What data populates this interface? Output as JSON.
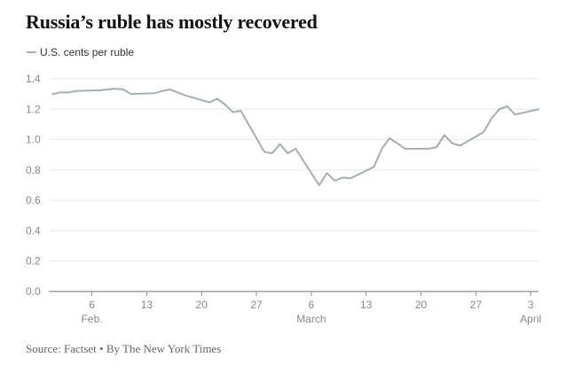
{
  "title": "Russia’s ruble has mostly recovered",
  "source": "Source: Factset • By The New York Times",
  "colors": {
    "line": "#a5aeae",
    "grid": "#e6e6e6",
    "axis": "#8c8c8c",
    "tick_text": "#888888",
    "text": "#121212"
  },
  "chart_data": {
    "type": "line",
    "title": "Russia’s ruble has mostly recovered",
    "ylabel": "",
    "xlabel": "",
    "ylim": [
      0,
      1.4
    ],
    "yticks": [
      0,
      0.2,
      0.4,
      0.6,
      0.8,
      1.0,
      1.2,
      1.4
    ],
    "ytick_labels": [
      "0.0",
      "0.2",
      "0.4",
      "0.6",
      "0.8",
      "1.0",
      "1.2",
      "1.4"
    ],
    "grid": true,
    "legend_position": "top-left",
    "xlim": [
      "2022-02-01",
      "2022-04-04"
    ],
    "xticks": [
      {
        "date": "2022-02-06",
        "label": "6",
        "sublabel": "Feb."
      },
      {
        "date": "2022-02-13",
        "label": "13",
        "sublabel": ""
      },
      {
        "date": "2022-02-20",
        "label": "20",
        "sublabel": ""
      },
      {
        "date": "2022-02-27",
        "label": "27",
        "sublabel": ""
      },
      {
        "date": "2022-03-06",
        "label": "6",
        "sublabel": "March"
      },
      {
        "date": "2022-03-13",
        "label": "13",
        "sublabel": ""
      },
      {
        "date": "2022-03-20",
        "label": "20",
        "sublabel": ""
      },
      {
        "date": "2022-03-27",
        "label": "27",
        "sublabel": ""
      },
      {
        "date": "2022-04-03",
        "label": "3",
        "sublabel": "April"
      }
    ],
    "series": [
      {
        "name": "U.S. cents per ruble",
        "x": [
          "2022-02-01",
          "2022-02-02",
          "2022-02-03",
          "2022-02-04",
          "2022-02-07",
          "2022-02-08",
          "2022-02-09",
          "2022-02-10",
          "2022-02-11",
          "2022-02-14",
          "2022-02-15",
          "2022-02-16",
          "2022-02-17",
          "2022-02-18",
          "2022-02-21",
          "2022-02-22",
          "2022-02-23",
          "2022-02-24",
          "2022-02-25",
          "2022-02-28",
          "2022-03-01",
          "2022-03-02",
          "2022-03-03",
          "2022-03-04",
          "2022-03-07",
          "2022-03-08",
          "2022-03-09",
          "2022-03-10",
          "2022-03-11",
          "2022-03-14",
          "2022-03-15",
          "2022-03-16",
          "2022-03-17",
          "2022-03-18",
          "2022-03-21",
          "2022-03-22",
          "2022-03-23",
          "2022-03-24",
          "2022-03-25",
          "2022-03-28",
          "2022-03-29",
          "2022-03-30",
          "2022-03-31",
          "2022-04-01",
          "2022-04-04"
        ],
        "values": [
          1.3,
          1.31,
          1.31,
          1.32,
          1.325,
          1.33,
          1.335,
          1.33,
          1.3,
          1.305,
          1.32,
          1.33,
          1.31,
          1.29,
          1.245,
          1.27,
          1.23,
          1.18,
          1.19,
          0.92,
          0.91,
          0.97,
          0.91,
          0.94,
          0.7,
          0.78,
          0.73,
          0.75,
          0.745,
          0.82,
          0.94,
          1.01,
          0.975,
          0.94,
          0.94,
          0.95,
          1.03,
          0.975,
          0.96,
          1.05,
          1.14,
          1.2,
          1.22,
          1.165,
          1.2
        ]
      }
    ]
  }
}
